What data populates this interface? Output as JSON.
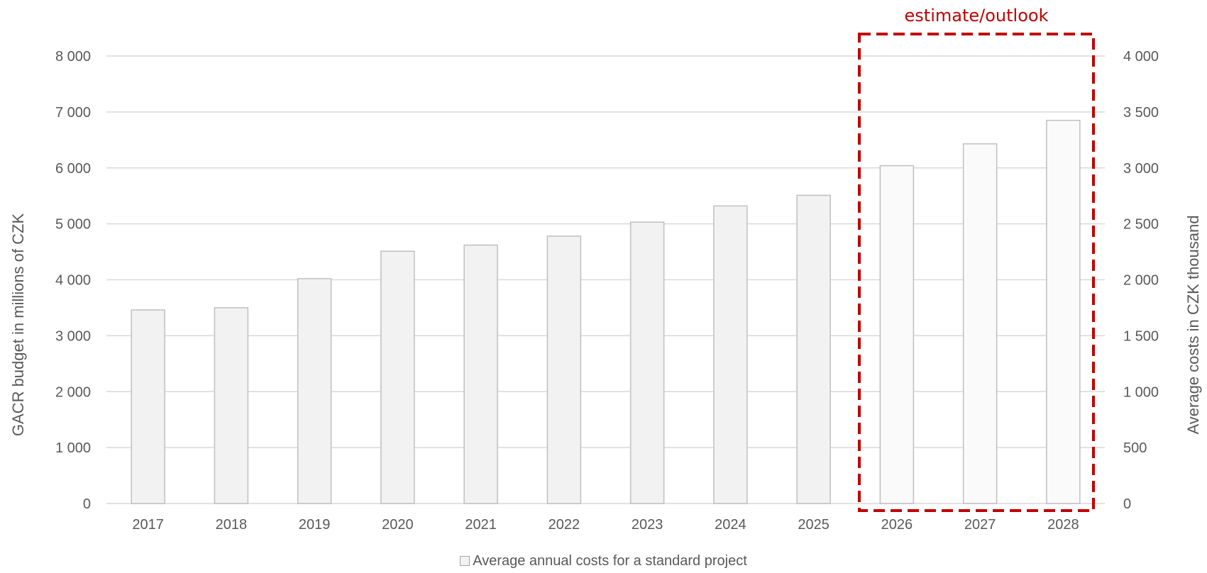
{
  "chart_data": {
    "type": "bar",
    "categories": [
      "2017",
      "2018",
      "2019",
      "2020",
      "2021",
      "2022",
      "2023",
      "2024",
      "2025",
      "2026",
      "2027",
      "2028"
    ],
    "series": [
      {
        "name": "Average annual costs for a standard project",
        "axis": "right",
        "values": [
          1730,
          1750,
          2010,
          2255,
          2310,
          2390,
          2515,
          2660,
          2755,
          3020,
          3215,
          3425
        ],
        "color": "#f2f2f2",
        "estimate_color": "#fafafa",
        "border_color": "#bfbfbf"
      }
    ],
    "y_left": {
      "label": "GACR budget in millions of CZK",
      "ticks": [
        "0",
        "1 000",
        "2 000",
        "3 000",
        "4 000",
        "5 000",
        "6 000",
        "7 000",
        "8 000"
      ],
      "ylim": [
        0,
        8000
      ]
    },
    "y_right": {
      "label": "Average costs in CZK thousand",
      "ticks": [
        "0",
        "500",
        "1 000",
        "1 500",
        "2 000",
        "2 500",
        "3 000",
        "3 500",
        "4 000"
      ],
      "ylim": [
        0,
        4000
      ]
    },
    "grid": true,
    "gridline_color": "#d9d9d9",
    "legend_position": "bottom",
    "annotation": {
      "text": "estimate/outlook",
      "color": "#c00000",
      "categories": [
        "2026",
        "2027",
        "2028"
      ]
    }
  }
}
